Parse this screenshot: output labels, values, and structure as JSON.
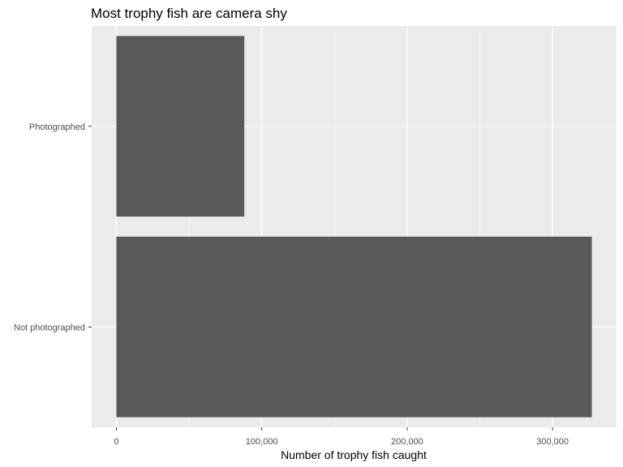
{
  "chart_data": {
    "type": "bar",
    "orientation": "horizontal",
    "title": "Most trophy fish are camera shy",
    "xlabel": "Number of trophy fish caught",
    "ylabel": "",
    "categories": [
      "Photographed",
      "Not photographed"
    ],
    "values": [
      88000,
      327000
    ],
    "xlim": [
      -17000,
      344000
    ],
    "x_ticks": [
      0,
      100000,
      200000,
      300000
    ],
    "x_tick_labels": [
      "0",
      "100,000",
      "200,000",
      "300,000"
    ],
    "grid": true,
    "legend": "none",
    "colors": {
      "bar": "#595959",
      "panel": "#ebebeb",
      "grid_major": "#ffffff",
      "tick_text": "#4d4d4d"
    }
  }
}
